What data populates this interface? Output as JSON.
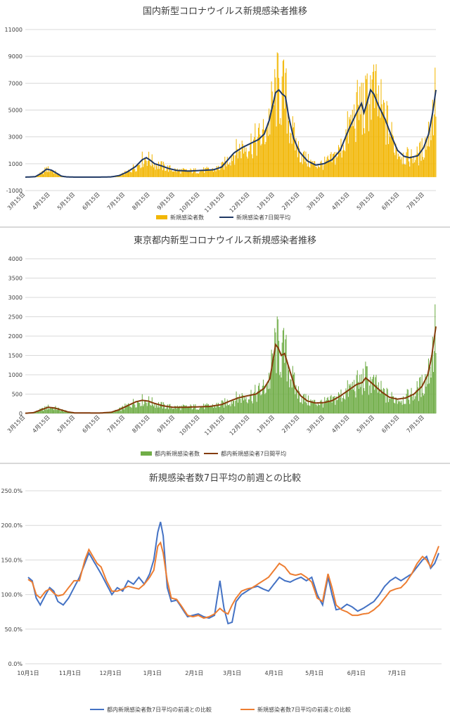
{
  "chart_data": [
    {
      "type": "bar",
      "title": "国内新型コロナウイルス新規感染者推移",
      "ylim": [
        -1000,
        11000
      ],
      "yticks": [
        "-1000",
        "1000",
        "3000",
        "5000",
        "7000",
        "9000",
        "11000"
      ],
      "xticks": [
        "3月15日",
        "4月15日",
        "5月15日",
        "6月15日",
        "7月15日",
        "8月15日",
        "9月15日",
        "10月15日",
        "11月15日",
        "12月15日",
        "1月15日",
        "2月15日",
        "3月15日",
        "4月15日",
        "5月15日",
        "6月15日",
        "7月15日"
      ],
      "grid": true,
      "legend_position": "bottom",
      "colors": {
        "bars": "#f2b705",
        "line": "#1f3864"
      },
      "series": [
        {
          "name": "新規感染者数",
          "kind": "bar"
        },
        {
          "name": "新規感染者7日間平均",
          "kind": "line"
        }
      ],
      "anchors": [
        [
          0,
          0
        ],
        [
          12,
          30
        ],
        [
          20,
          300
        ],
        [
          26,
          600
        ],
        [
          32,
          520
        ],
        [
          38,
          300
        ],
        [
          44,
          80
        ],
        [
          50,
          20
        ],
        [
          60,
          0
        ],
        [
          90,
          0
        ],
        [
          105,
          20
        ],
        [
          115,
          120
        ],
        [
          125,
          400
        ],
        [
          135,
          800
        ],
        [
          143,
          1300
        ],
        [
          148,
          1450
        ],
        [
          153,
          1250
        ],
        [
          158,
          1000
        ],
        [
          166,
          850
        ],
        [
          175,
          650
        ],
        [
          185,
          500
        ],
        [
          200,
          450
        ],
        [
          215,
          500
        ],
        [
          230,
          550
        ],
        [
          240,
          750
        ],
        [
          245,
          1100
        ],
        [
          255,
          1800
        ],
        [
          265,
          2200
        ],
        [
          275,
          2500
        ],
        [
          285,
          2800
        ],
        [
          292,
          3200
        ],
        [
          298,
          4200
        ],
        [
          303,
          5500
        ],
        [
          306,
          6300
        ],
        [
          310,
          6500
        ],
        [
          314,
          6200
        ],
        [
          318,
          6000
        ],
        [
          322,
          4500
        ],
        [
          328,
          2900
        ],
        [
          335,
          1900
        ],
        [
          345,
          1200
        ],
        [
          355,
          900
        ],
        [
          365,
          1000
        ],
        [
          375,
          1300
        ],
        [
          385,
          2000
        ],
        [
          395,
          3500
        ],
        [
          405,
          4800
        ],
        [
          411,
          5500
        ],
        [
          414,
          4800
        ],
        [
          418,
          5600
        ],
        [
          422,
          6500
        ],
        [
          426,
          6200
        ],
        [
          432,
          5300
        ],
        [
          440,
          4300
        ],
        [
          448,
          3000
        ],
        [
          455,
          2000
        ],
        [
          463,
          1550
        ],
        [
          470,
          1450
        ],
        [
          480,
          1600
        ],
        [
          487,
          2200
        ],
        [
          493,
          3200
        ],
        [
          498,
          4800
        ],
        [
          502,
          6500
        ]
      ]
    },
    {
      "type": "bar",
      "title": "東京都内新型コロナウイルス新規感染者推移",
      "ylim": [
        0,
        4000
      ],
      "yticks": [
        "0",
        "500",
        "1000",
        "1500",
        "2000",
        "2500",
        "3000",
        "3500",
        "4000"
      ],
      "xticks": [
        "3月15日",
        "4月15日",
        "5月15日",
        "6月15日",
        "7月15日",
        "8月15日",
        "9月15日",
        "10月15日",
        "11月15日",
        "12月15日",
        "1月15日",
        "2月15日",
        "3月15日",
        "4月15日",
        "5月15日",
        "6月15日",
        "7月15日"
      ],
      "grid": true,
      "legend_position": "bottom",
      "colors": {
        "bars": "#70ad47",
        "line": "#843c0c"
      },
      "series": [
        {
          "name": "都内新規感染者数",
          "kind": "bar"
        },
        {
          "name": "都内新規感染者7日間平均",
          "kind": "line"
        }
      ],
      "anchors": [
        [
          0,
          5
        ],
        [
          10,
          20
        ],
        [
          20,
          100
        ],
        [
          28,
          160
        ],
        [
          36,
          140
        ],
        [
          44,
          90
        ],
        [
          52,
          40
        ],
        [
          60,
          15
        ],
        [
          90,
          10
        ],
        [
          105,
          30
        ],
        [
          115,
          100
        ],
        [
          125,
          200
        ],
        [
          135,
          300
        ],
        [
          143,
          340
        ],
        [
          150,
          320
        ],
        [
          158,
          260
        ],
        [
          168,
          200
        ],
        [
          180,
          160
        ],
        [
          195,
          160
        ],
        [
          210,
          170
        ],
        [
          225,
          180
        ],
        [
          240,
          230
        ],
        [
          250,
          320
        ],
        [
          260,
          400
        ],
        [
          270,
          450
        ],
        [
          282,
          500
        ],
        [
          292,
          650
        ],
        [
          299,
          900
        ],
        [
          303,
          1400
        ],
        [
          306,
          1780
        ],
        [
          309,
          1700
        ],
        [
          313,
          1500
        ],
        [
          317,
          1550
        ],
        [
          322,
          1200
        ],
        [
          330,
          650
        ],
        [
          337,
          450
        ],
        [
          345,
          320
        ],
        [
          355,
          270
        ],
        [
          365,
          280
        ],
        [
          375,
          330
        ],
        [
          385,
          450
        ],
        [
          395,
          600
        ],
        [
          405,
          750
        ],
        [
          412,
          800
        ],
        [
          416,
          920
        ],
        [
          420,
          850
        ],
        [
          428,
          700
        ],
        [
          436,
          550
        ],
        [
          445,
          420
        ],
        [
          455,
          370
        ],
        [
          465,
          400
        ],
        [
          475,
          500
        ],
        [
          485,
          700
        ],
        [
          492,
          1000
        ],
        [
          497,
          1500
        ],
        [
          502,
          2250
        ]
      ]
    },
    {
      "type": "line",
      "title": "新規感染者数7日平均の前週との比較",
      "ylim": [
        0,
        250
      ],
      "yticks": [
        "0.0%",
        "50.0%",
        "100.0%",
        "150.0%",
        "200.0%",
        "250.0%"
      ],
      "xticks": [
        "10月1日",
        "11月1日",
        "12月1日",
        "1月1日",
        "2月1日",
        "3月1日",
        "4月1日",
        "5月1日",
        "6月1日",
        "7月1日"
      ],
      "grid": true,
      "legend_position": "bottom",
      "series": [
        {
          "name": "都内新規感染者数7日平均の前週との比較",
          "color": "#4472c4",
          "anchors": [
            [
              0,
              125
            ],
            [
              3,
              120
            ],
            [
              6,
              95
            ],
            [
              9,
              85
            ],
            [
              13,
              100
            ],
            [
              16,
              110
            ],
            [
              19,
              105
            ],
            [
              22,
              90
            ],
            [
              26,
              85
            ],
            [
              30,
              95
            ],
            [
              34,
              110
            ],
            [
              38,
              125
            ],
            [
              42,
              145
            ],
            [
              45,
              160
            ],
            [
              48,
              150
            ],
            [
              51,
              140
            ],
            [
              54,
              130
            ],
            [
              58,
              115
            ],
            [
              62,
              100
            ],
            [
              66,
              110
            ],
            [
              70,
              105
            ],
            [
              74,
              120
            ],
            [
              78,
              115
            ],
            [
              82,
              125
            ],
            [
              86,
              115
            ],
            [
              90,
              130
            ],
            [
              93,
              150
            ],
            [
              96,
              190
            ],
            [
              98,
              205
            ],
            [
              100,
              185
            ],
            [
              103,
              110
            ],
            [
              106,
              90
            ],
            [
              110,
              92
            ],
            [
              114,
              80
            ],
            [
              118,
              68
            ],
            [
              122,
              70
            ],
            [
              126,
              72
            ],
            [
              130,
              68
            ],
            [
              134,
              66
            ],
            [
              138,
              70
            ],
            [
              142,
              120
            ],
            [
              145,
              80
            ],
            [
              148,
              58
            ],
            [
              151,
              60
            ],
            [
              154,
              90
            ],
            [
              158,
              100
            ],
            [
              162,
              105
            ],
            [
              166,
              110
            ],
            [
              170,
              112
            ],
            [
              174,
              108
            ],
            [
              178,
              105
            ],
            [
              182,
              115
            ],
            [
              186,
              125
            ],
            [
              190,
              120
            ],
            [
              194,
              118
            ],
            [
              198,
              122
            ],
            [
              202,
              125
            ],
            [
              206,
              120
            ],
            [
              210,
              125
            ],
            [
              214,
              100
            ],
            [
              218,
              85
            ],
            [
              222,
              125
            ],
            [
              225,
              100
            ],
            [
              228,
              78
            ],
            [
              232,
              80
            ],
            [
              236,
              86
            ],
            [
              240,
              82
            ],
            [
              244,
              76
            ],
            [
              248,
              80
            ],
            [
              252,
              85
            ],
            [
              256,
              90
            ],
            [
              260,
              100
            ],
            [
              264,
              112
            ],
            [
              268,
              120
            ],
            [
              272,
              125
            ],
            [
              276,
              120
            ],
            [
              280,
              125
            ],
            [
              284,
              130
            ],
            [
              288,
              140
            ],
            [
              292,
              150
            ],
            [
              295,
              155
            ],
            [
              298,
              138
            ],
            [
              301,
              145
            ],
            [
              304,
              160
            ]
          ]
        },
        {
          "name": "新規感染者数7日平均の前週との比較",
          "color": "#ed7d31",
          "anchors": [
            [
              0,
              122
            ],
            [
              3,
              118
            ],
            [
              6,
              100
            ],
            [
              9,
              95
            ],
            [
              13,
              105
            ],
            [
              16,
              108
            ],
            [
              19,
              102
            ],
            [
              22,
              98
            ],
            [
              26,
              100
            ],
            [
              30,
              110
            ],
            [
              34,
              120
            ],
            [
              38,
              120
            ],
            [
              42,
              150
            ],
            [
              45,
              165
            ],
            [
              48,
              155
            ],
            [
              51,
              145
            ],
            [
              54,
              140
            ],
            [
              58,
              120
            ],
            [
              62,
              105
            ],
            [
              66,
              105
            ],
            [
              70,
              108
            ],
            [
              74,
              112
            ],
            [
              78,
              110
            ],
            [
              82,
              108
            ],
            [
              86,
              115
            ],
            [
              90,
              125
            ],
            [
              93,
              135
            ],
            [
              96,
              170
            ],
            [
              98,
              175
            ],
            [
              100,
              160
            ],
            [
              103,
              120
            ],
            [
              106,
              95
            ],
            [
              110,
              93
            ],
            [
              114,
              82
            ],
            [
              118,
              70
            ],
            [
              122,
              68
            ],
            [
              126,
              70
            ],
            [
              130,
              66
            ],
            [
              134,
              68
            ],
            [
              138,
              72
            ],
            [
              142,
              80
            ],
            [
              145,
              75
            ],
            [
              148,
              72
            ],
            [
              151,
              85
            ],
            [
              154,
              95
            ],
            [
              158,
              105
            ],
            [
              162,
              108
            ],
            [
              166,
              110
            ],
            [
              170,
              115
            ],
            [
              174,
              120
            ],
            [
              178,
              125
            ],
            [
              182,
              135
            ],
            [
              186,
              145
            ],
            [
              190,
              140
            ],
            [
              194,
              130
            ],
            [
              198,
              128
            ],
            [
              202,
              130
            ],
            [
              206,
              125
            ],
            [
              210,
              118
            ],
            [
              214,
              95
            ],
            [
              218,
              90
            ],
            [
              222,
              130
            ],
            [
              225,
              110
            ],
            [
              228,
              85
            ],
            [
              232,
              78
            ],
            [
              236,
              75
            ],
            [
              240,
              70
            ],
            [
              244,
              70
            ],
            [
              248,
              72
            ],
            [
              252,
              73
            ],
            [
              256,
              78
            ],
            [
              260,
              85
            ],
            [
              264,
              95
            ],
            [
              268,
              105
            ],
            [
              272,
              108
            ],
            [
              276,
              110
            ],
            [
              280,
              118
            ],
            [
              284,
              130
            ],
            [
              288,
              145
            ],
            [
              292,
              155
            ],
            [
              295,
              150
            ],
            [
              298,
              140
            ],
            [
              301,
              155
            ],
            [
              304,
              170
            ]
          ]
        }
      ]
    }
  ]
}
